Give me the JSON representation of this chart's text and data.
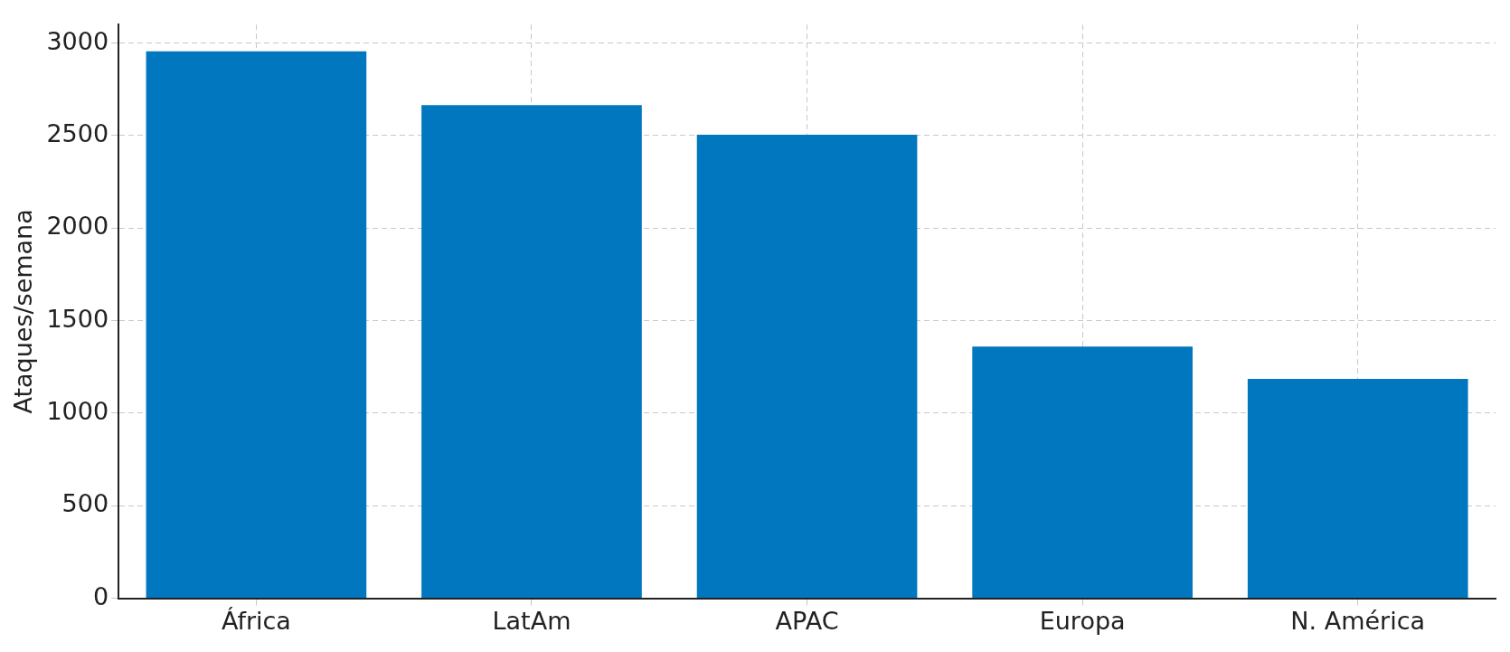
{
  "chart_data": {
    "type": "bar",
    "ylabel": "Ataques/semana",
    "categories": [
      "África",
      "LatAm",
      "APAC",
      "Europa",
      "N. América"
    ],
    "values": [
      2955,
      2665,
      2505,
      1360,
      1185
    ],
    "color": "#0077be",
    "ylim": [
      0,
      3100
    ],
    "yticks": [
      0,
      500,
      1000,
      1500,
      2000,
      2500,
      3000
    ],
    "grid": true,
    "legend": false
  }
}
